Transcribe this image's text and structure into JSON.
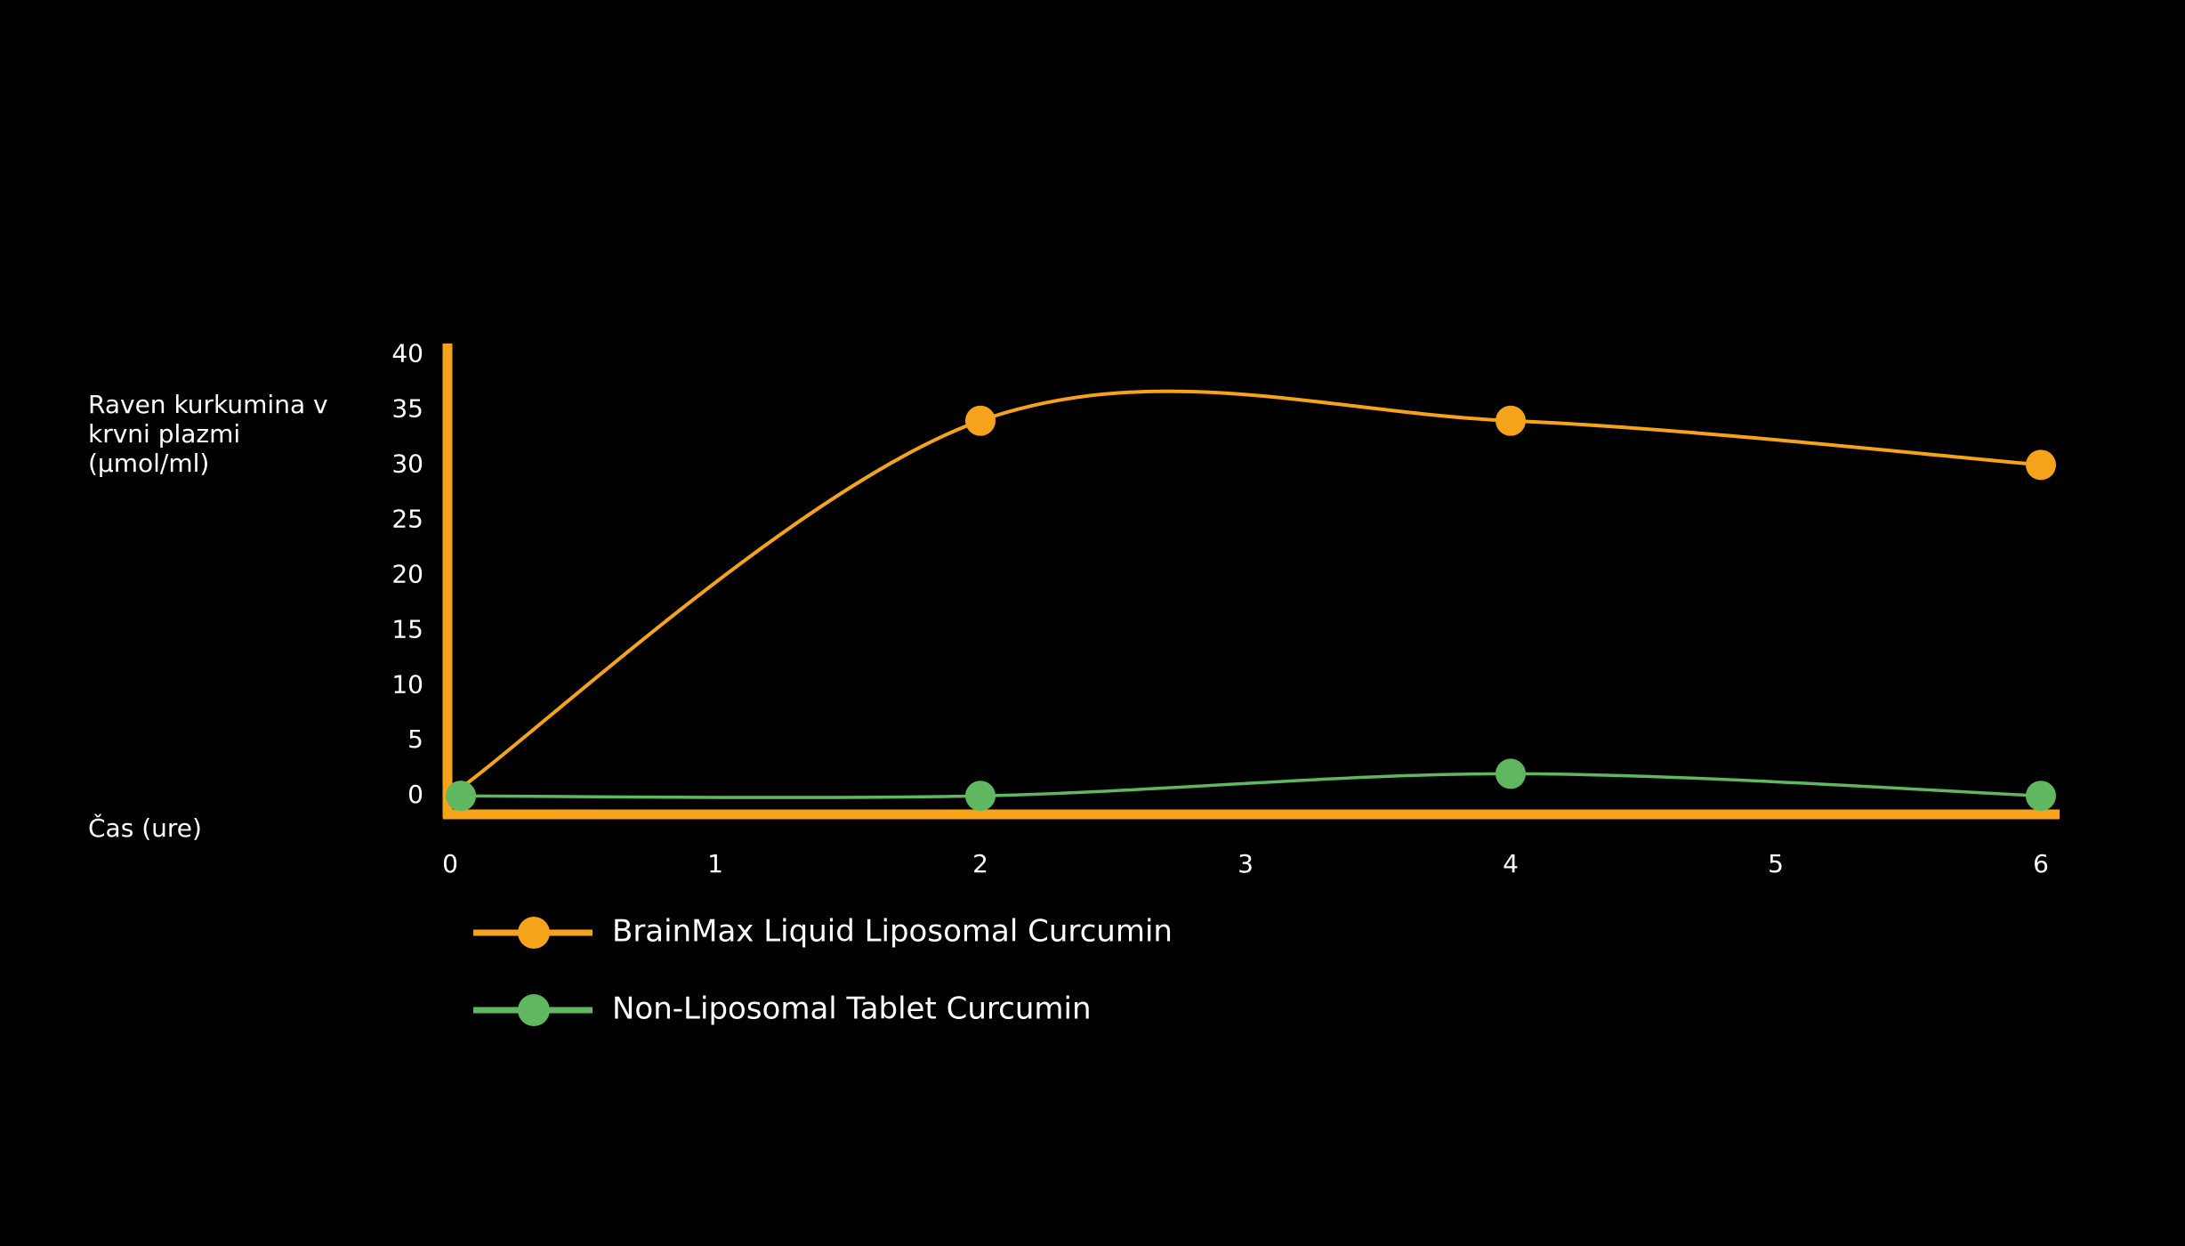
{
  "chart_data": {
    "type": "line",
    "ylabel": "Raven kurkumina v krvni plazmi (µmol/ml)",
    "xlabel": "Čas (ure)",
    "x": [
      0,
      2,
      4,
      6
    ],
    "series": [
      {
        "name": "BrainMax Liquid Liposomal Curcumin",
        "color": "#f5a31a",
        "values": [
          0,
          34,
          34,
          30
        ]
      },
      {
        "name": "Non-Liposomal Tablet Curcumin",
        "color": "#5fb85f",
        "values": [
          0,
          0,
          2,
          0
        ]
      }
    ],
    "xlim": [
      0,
      6
    ],
    "xticks": [
      0,
      1,
      2,
      3,
      4,
      5,
      6
    ],
    "ylim": [
      -2,
      41
    ],
    "yticks": [
      0,
      5,
      10,
      15,
      20,
      25,
      30,
      35,
      40
    ],
    "axis_color": "#f5a31a",
    "smooth": true,
    "grid": false,
    "legend": "bottom-left"
  }
}
